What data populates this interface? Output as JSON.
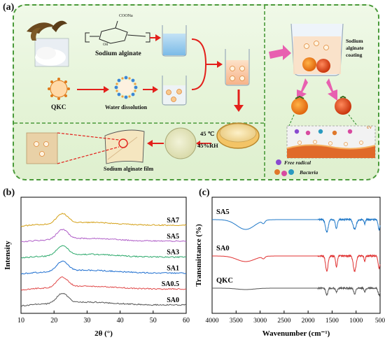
{
  "figure": {
    "panel_a_label": "(a)",
    "panel_b_label": "(b)",
    "panel_c_label": "(c)"
  },
  "schematic": {
    "sodium_alginate": "Sodium alginate",
    "coona": "COONa",
    "oh": "OH",
    "qkc": "QKC",
    "water_dissolution": "Water dissolution",
    "sodium_alginate_coating": "Sodium\nalginate\ncoating",
    "temperature": "45 ℃",
    "humidity": "45%RH",
    "film": "Sodium alginate film",
    "free_radical": "Free radical",
    "bacteria": "Bacteria",
    "uv": "UV"
  },
  "chart_data": [
    {
      "type": "line",
      "xlabel": "2θ (°)",
      "ylabel": "Intensity",
      "xlim": [
        10,
        60
      ],
      "xticks": [
        10,
        20,
        30,
        40,
        50,
        60
      ],
      "series": [
        {
          "name": "SA7",
          "color": "#d4a017",
          "peak_x": 22.5
        },
        {
          "name": "SA5",
          "color": "#b05fc8",
          "peak_x": 22.5
        },
        {
          "name": "SA3",
          "color": "#2aa86a",
          "peak_x": 22.5
        },
        {
          "name": "SA1",
          "color": "#1f6fd0",
          "peak_x": 22.5
        },
        {
          "name": "SA0.5",
          "color": "#e04848",
          "peak_x": 22.5
        },
        {
          "name": "SA0",
          "color": "#555555",
          "peak_x": 22.5
        }
      ]
    },
    {
      "type": "line",
      "xlabel": "Wavenumber (cm⁻¹)",
      "ylabel": "Transmittance (%)",
      "xlim": [
        4000,
        500
      ],
      "xticks": [
        4000,
        3500,
        3000,
        2500,
        2000,
        1500,
        1000,
        500
      ],
      "series": [
        {
          "name": "SA5",
          "color": "#1f78c8"
        },
        {
          "name": "SA0",
          "color": "#e03030"
        },
        {
          "name": "QKC",
          "color": "#555555"
        }
      ]
    }
  ]
}
